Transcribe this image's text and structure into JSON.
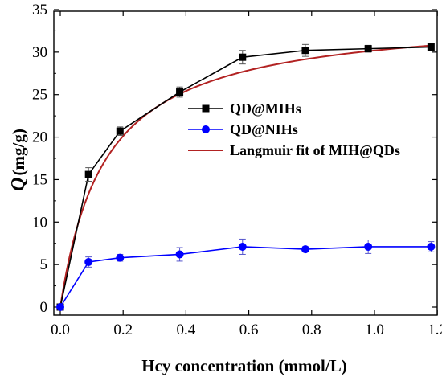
{
  "chart_data": {
    "type": "line",
    "xlabel": "Hcy concentration (mmol/L)",
    "ylabel_symbol": "Q",
    "ylabel_unit": "(mg/g)",
    "xlim": [
      0,
      1.22
    ],
    "ylim": [
      0,
      35
    ],
    "x_ticks": [
      "0.0",
      "0.2",
      "0.4",
      "0.6",
      "0.8",
      "1.0",
      "1.2"
    ],
    "y_ticks": [
      "0",
      "5",
      "10",
      "15",
      "20",
      "25",
      "30",
      "35"
    ],
    "series": [
      {
        "name": "QD@MIHs",
        "color": "#000000",
        "marker": "square",
        "x": [
          0.0,
          0.09,
          0.19,
          0.38,
          0.58,
          0.78,
          0.98,
          1.18
        ],
        "y": [
          0.0,
          15.6,
          20.7,
          25.3,
          29.4,
          30.2,
          30.4,
          30.6
        ],
        "err": [
          0.0,
          0.8,
          0.5,
          0.6,
          0.8,
          0.7,
          0.4,
          0.3
        ]
      },
      {
        "name": "QD@NIHs",
        "color": "#0000ff",
        "marker": "circle",
        "x": [
          0.0,
          0.09,
          0.19,
          0.38,
          0.58,
          0.78,
          0.98,
          1.18
        ],
        "y": [
          0.0,
          5.3,
          5.8,
          6.2,
          7.1,
          6.8,
          7.1,
          7.1
        ],
        "err": [
          0.0,
          0.6,
          0.4,
          0.8,
          0.9,
          0.3,
          0.8,
          0.6
        ]
      },
      {
        "name": "Langmuir fit of MIH@QDs",
        "color": "#b22222",
        "marker": "none",
        "fit": {
          "qmax": 34.5,
          "k": 7.0
        }
      }
    ],
    "legend_position": "center-right",
    "grid": false
  }
}
